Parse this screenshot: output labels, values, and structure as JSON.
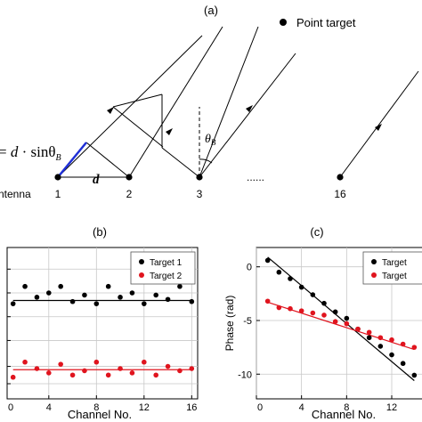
{
  "diagram_a": {
    "label": "(a)",
    "legend": "Point target",
    "formula_prefix": "= ",
    "formula_d": "d",
    "formula_mid": " · sinθ",
    "formula_sub": "B",
    "angle_symbol": "θ",
    "angle_sub": "B",
    "d_label": "d",
    "antenna_label": "ntenna",
    "dots": "......",
    "antennas": [
      "1",
      "2",
      "3",
      "16"
    ]
  },
  "chart_data": [
    {
      "id": "b",
      "label": "(b)",
      "type": "scatter",
      "xlabel": "Channel No.",
      "ylabel": "",
      "xlim": [
        0.5,
        16.5
      ],
      "ylim": [
        -4.3,
        2.7
      ],
      "xticks": [
        0,
        4,
        8,
        12,
        16
      ],
      "tick_labels": [
        "0",
        "4",
        "8",
        "12",
        "16"
      ],
      "yticks": [
        -3.6,
        -2.8,
        -1.6,
        -0.5,
        0.6,
        1.7
      ],
      "grid": true,
      "legend_position": "top-right",
      "series": [
        {
          "name": "Target 1",
          "color": "#000000",
          "x": [
            1,
            2,
            3,
            4,
            5,
            6,
            7,
            8,
            9,
            10,
            11,
            12,
            13,
            14,
            15,
            16
          ],
          "y": [
            0.1,
            0.9,
            0.4,
            0.6,
            0.9,
            0.2,
            0.5,
            0.1,
            0.9,
            0.4,
            0.6,
            0.1,
            0.5,
            0.3,
            0.9,
            0.2
          ],
          "fit": [
            0.25,
            0.25
          ]
        },
        {
          "name": "Target 2",
          "color": "#e0141e",
          "x": [
            1,
            2,
            3,
            4,
            5,
            6,
            7,
            8,
            9,
            10,
            11,
            12,
            13,
            14,
            15,
            16
          ],
          "y": [
            -3.3,
            -2.6,
            -2.9,
            -3.1,
            -2.7,
            -3.2,
            -3.0,
            -2.6,
            -3.2,
            -2.9,
            -3.1,
            -2.6,
            -3.2,
            -2.8,
            -3.0,
            -2.9
          ],
          "fit": [
            -2.95,
            -2.95
          ]
        }
      ]
    },
    {
      "id": "c",
      "label": "(c)",
      "type": "scatter",
      "xlabel": "Channel No.",
      "ylabel": "Phase (rad)",
      "xlim": [
        0,
        15
      ],
      "ylim": [
        -12.3,
        1.8
      ],
      "xticks": [
        0,
        4,
        8,
        12
      ],
      "yticks": [
        0,
        -5,
        -10
      ],
      "tick_labels": [
        "0",
        "4",
        "8",
        "12"
      ],
      "ytick_labels": [
        "0",
        "-5",
        "-10"
      ],
      "grid": true,
      "legend_position": "top-right",
      "series": [
        {
          "name": "Target",
          "color": "#000000",
          "x": [
            1,
            2,
            3,
            4,
            5,
            6,
            7,
            8,
            9,
            10,
            11,
            12,
            13,
            14
          ],
          "y": [
            0.6,
            -0.5,
            -1.1,
            -1.9,
            -2.6,
            -3.4,
            -4.2,
            -4.8,
            -5.8,
            -6.6,
            -7.4,
            -8.2,
            -9.0,
            -10.1
          ],
          "fit": [
            0.9,
            -10.6
          ]
        },
        {
          "name": "Target",
          "color": "#e0141e",
          "x": [
            1,
            2,
            3,
            4,
            5,
            6,
            7,
            8,
            9,
            10,
            11,
            12,
            13,
            14
          ],
          "y": [
            -3.2,
            -3.8,
            -3.9,
            -4.1,
            -4.3,
            -4.5,
            -5.1,
            -5.3,
            -5.8,
            -6.1,
            -6.6,
            -6.8,
            -7.2,
            -7.5
          ],
          "fit": [
            -3.3,
            -7.7
          ]
        }
      ]
    }
  ]
}
